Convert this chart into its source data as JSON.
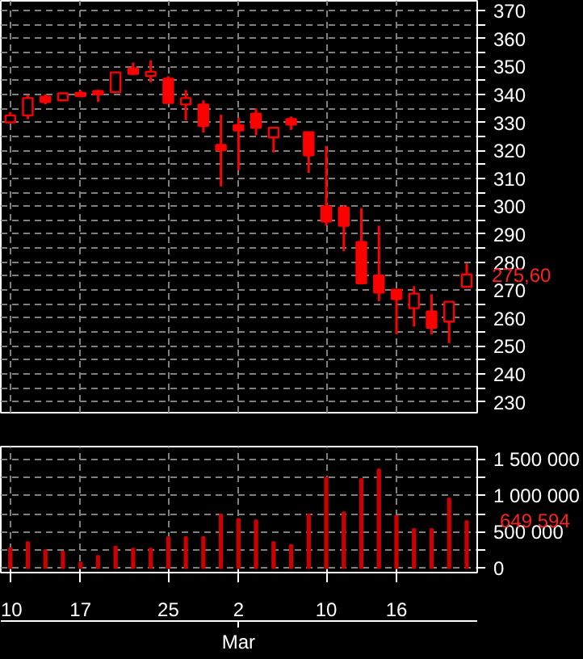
{
  "chart_data": [
    {
      "type": "candlestick",
      "categories": [
        "10",
        null,
        null,
        null,
        "17",
        null,
        null,
        null,
        null,
        "25",
        null,
        null,
        null,
        "2",
        null,
        null,
        null,
        null,
        "10",
        null,
        null,
        null,
        "16",
        null,
        null,
        null,
        null
      ],
      "ohlc": [
        [
          330,
          333.7,
          329.8,
          332.5
        ],
        [
          332.5,
          339.8,
          331.2,
          338.7
        ],
        [
          339.2,
          340,
          336.5,
          337.3
        ],
        [
          337.9,
          340.6,
          337.9,
          340.4
        ],
        [
          340.6,
          341.5,
          339,
          339.4
        ],
        [
          341.2,
          341.6,
          337.3,
          340
        ],
        [
          340.8,
          348,
          340.6,
          347.9
        ],
        [
          349.3,
          351.4,
          347,
          347.3
        ],
        [
          346.6,
          352.2,
          344.3,
          348.1
        ],
        [
          345.6,
          346.5,
          336.9,
          336.9
        ],
        [
          336.4,
          341.6,
          330.8,
          338.7
        ],
        [
          336.4,
          337.9,
          326.3,
          328.7
        ],
        [
          321.9,
          332.7,
          307.1,
          320
        ],
        [
          329,
          331.7,
          312.9,
          327.1
        ],
        [
          333.1,
          335,
          325.4,
          328.1
        ],
        [
          324.6,
          328.1,
          319.2,
          328.1
        ],
        [
          331.2,
          332.1,
          327.3,
          329.2
        ],
        [
          326.5,
          326.5,
          311.9,
          318.2
        ],
        [
          299.9,
          321.5,
          293,
          294.5
        ],
        [
          299.5,
          300.3,
          283.9,
          293
        ],
        [
          287.2,
          299.3,
          272,
          272.4
        ],
        [
          275.2,
          293,
          266,
          269.1
        ],
        [
          270.1,
          270.1,
          254.1,
          266.8
        ],
        [
          263.5,
          271.4,
          256.9,
          268.7
        ],
        [
          262.3,
          268.5,
          254.1,
          256.5
        ],
        [
          258.7,
          265.8,
          251,
          265.8
        ],
        [
          271.1,
          279.5,
          271.1,
          275.6
        ]
      ],
      "color": "#ff0000",
      "ylim": [
        226.1,
        373.5
      ],
      "yticks": [
        230,
        {
          "value": 235,
          "label": null
        },
        240,
        {
          "value": 245,
          "label": null
        },
        250,
        {
          "value": 255,
          "label": null
        },
        260,
        {
          "value": 265,
          "label": null
        },
        270,
        {
          "value": 275,
          "label": null
        },
        280,
        {
          "value": 285,
          "label": null
        },
        290,
        {
          "value": 295,
          "label": null
        },
        300,
        {
          "value": 305,
          "label": null
        },
        310,
        {
          "value": 315,
          "label": null
        },
        320,
        {
          "value": 325,
          "label": null
        },
        330,
        {
          "value": 335,
          "label": null
        },
        340,
        {
          "value": 345,
          "label": null
        },
        350,
        {
          "value": 355,
          "label": null
        },
        360,
        {
          "value": 365,
          "label": null
        },
        370
      ],
      "grid": true,
      "tick_labels": "y",
      "annotations": [
        "275,60"
      ]
    },
    {
      "type": "bar",
      "categories": [
        "10",
        null,
        null,
        null,
        "17",
        null,
        null,
        null,
        null,
        "25",
        null,
        null,
        null,
        "2",
        null,
        null,
        null,
        null,
        "10",
        null,
        null,
        null,
        "16",
        null,
        null,
        null,
        null
      ],
      "values": [
        280000,
        360000,
        250000,
        230000,
        80000,
        170000,
        300000,
        270000,
        270000,
        430000,
        430000,
        430000,
        740000,
        680000,
        660000,
        360000,
        320000,
        740000,
        1250000,
        770000,
        1230000,
        1360000,
        720000,
        540000,
        540000,
        960000,
        649594
      ],
      "color": "#cc0000",
      "ylim": [
        -60000,
        1675000
      ],
      "yticks": [
        0,
        {
          "value": 250000,
          "label": null
        },
        {
          "value": 500000,
          "label": "500 000"
        },
        {
          "value": 750000,
          "label": null
        },
        {
          "value": 1000000,
          "label": "1 000 000"
        },
        {
          "value": 1250000,
          "label": null
        },
        {
          "value": 1500000,
          "label": "1 500 000"
        }
      ],
      "grid": true,
      "annotations": [
        "649 594",
        {
          "text": "Mar",
          "x": "2"
        }
      ]
    }
  ]
}
